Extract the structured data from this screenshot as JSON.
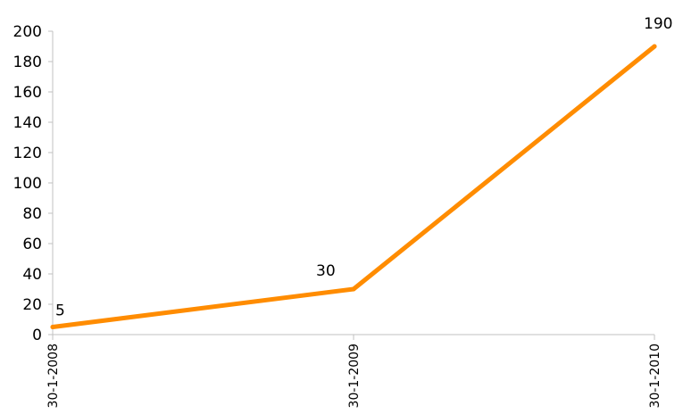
{
  "chart_data": {
    "type": "line",
    "title": "",
    "xlabel": "",
    "ylabel": "",
    "categories": [
      "30-1-2008",
      "30-1-2009",
      "30-1-2010"
    ],
    "series": [
      {
        "values": [
          5,
          30,
          190
        ],
        "color": "#ff8c00",
        "data_labels": [
          "5",
          "30",
          "190"
        ]
      }
    ],
    "ylim": [
      0,
      200
    ],
    "y_ticks": [
      "0",
      "20",
      "40",
      "60",
      "80",
      "100",
      "120",
      "140",
      "160",
      "180",
      "200"
    ],
    "grid": false,
    "legend": "none",
    "axis_color": "#c0c0c0"
  }
}
